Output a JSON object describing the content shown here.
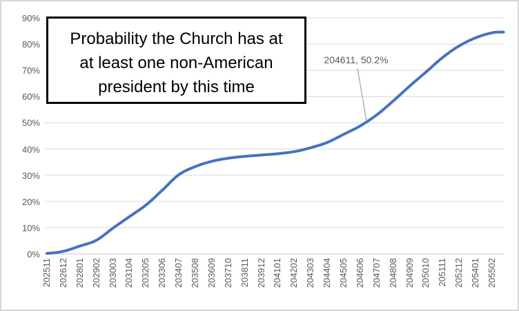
{
  "window": {
    "background": "#FFFFFF",
    "border_color": "#D6D6D6"
  },
  "chart_data": {
    "type": "line",
    "title": "Probability the Church has at at least one non-American president by this time",
    "title_lines": [
      "Probability the Church has at",
      "at least one non-American",
      "president by this time"
    ],
    "xlabel": "",
    "ylabel": "",
    "ylim": [
      0,
      90
    ],
    "y_tick_labels": [
      "0%",
      "10%",
      "20%",
      "30%",
      "40%",
      "50%",
      "60%",
      "70%",
      "80%",
      "90%"
    ],
    "grid": "horizontal",
    "legend": "none",
    "categories": [
      "202511",
      "202612",
      "202801",
      "202902",
      "203003",
      "203104",
      "203205",
      "203306",
      "203407",
      "203508",
      "203609",
      "203710",
      "203811",
      "203912",
      "204101",
      "204202",
      "204303",
      "204404",
      "204505",
      "204606",
      "204707",
      "204808",
      "204909",
      "205010",
      "205111",
      "205212",
      "205401",
      "205502"
    ],
    "values": [
      0.2,
      1.0,
      3.0,
      5.2,
      9.8,
      14.2,
      18.6,
      24.3,
      30.2,
      33.3,
      35.3,
      36.5,
      37.2,
      37.7,
      38.2,
      39.0,
      40.5,
      42.5,
      45.6,
      48.8,
      53.0,
      58.3,
      64.0,
      69.4,
      74.9,
      79.3,
      82.4,
      84.3
    ],
    "category_step_months": 13,
    "series_end": {
      "months_after_last_label": 9,
      "value": 84.6
    },
    "annotation": {
      "label": "204611, 50.2%",
      "x": "204611",
      "value": 50.2
    },
    "colors": {
      "line": "#4472C4",
      "gridline": "#D9D9D9",
      "axis_line": "#C6C6C6",
      "tick_label": "#595959",
      "annotation_text": "#595959",
      "leader_line": "#A6A6A6",
      "title_text": "#000000",
      "title_border": "#000000"
    }
  }
}
